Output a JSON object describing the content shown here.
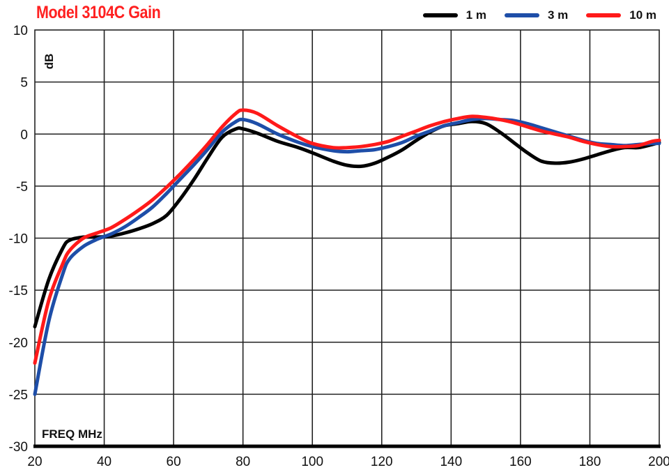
{
  "chart_data": {
    "type": "line",
    "title": "Model 3104C Gain",
    "xlabel": "FREQ  MHz",
    "ylabel": "dB",
    "xlim": [
      20,
      200
    ],
    "ylim": [
      -30,
      10
    ],
    "xticks": [
      20,
      40,
      60,
      80,
      100,
      120,
      140,
      160,
      180,
      200
    ],
    "yticks": [
      10,
      5,
      0,
      -5,
      -10,
      -15,
      -20,
      -25,
      -30
    ],
    "grid": true,
    "legend_position": "top-right",
    "colors": {
      "title": "#ff2020",
      "1 m": "#000000",
      "3 m": "#1e4ea8",
      "10 m": "#ff1a1a"
    },
    "series": [
      {
        "name": "1 m",
        "color": "#000000",
        "x": [
          20,
          24,
          28,
          30,
          34,
          38,
          42,
          46,
          50,
          54,
          58,
          62,
          66,
          70,
          74,
          78,
          80,
          84,
          90,
          96,
          100,
          106,
          110,
          114,
          118,
          122,
          126,
          130,
          134,
          138,
          142,
          146,
          150,
          154,
          158,
          162,
          166,
          170,
          174,
          178,
          182,
          186,
          190,
          194,
          198,
          200
        ],
        "y": [
          -18.5,
          -14,
          -11,
          -10.2,
          -9.9,
          -9.9,
          -9.8,
          -9.5,
          -9.1,
          -8.6,
          -7.8,
          -6.2,
          -4.3,
          -2.2,
          -0.3,
          0.5,
          0.5,
          0.1,
          -0.7,
          -1.3,
          -1.8,
          -2.6,
          -3.0,
          -3.1,
          -2.8,
          -2.2,
          -1.5,
          -0.6,
          0.2,
          0.8,
          1.0,
          1.2,
          1.0,
          0.2,
          -0.8,
          -1.8,
          -2.6,
          -2.8,
          -2.7,
          -2.4,
          -2.0,
          -1.6,
          -1.3,
          -1.3,
          -1.0,
          -0.8
        ]
      },
      {
        "name": "3 m",
        "color": "#1e4ea8",
        "x": [
          20,
          24,
          28,
          30,
          34,
          38,
          42,
          46,
          50,
          54,
          58,
          62,
          66,
          70,
          74,
          78,
          80,
          84,
          90,
          96,
          100,
          106,
          110,
          114,
          118,
          122,
          126,
          130,
          134,
          138,
          142,
          146,
          150,
          154,
          158,
          162,
          166,
          170,
          174,
          178,
          182,
          186,
          190,
          194,
          198,
          200
        ],
        "y": [
          -25,
          -18,
          -13.5,
          -12,
          -10.8,
          -10.1,
          -9.6,
          -8.9,
          -8.0,
          -7.0,
          -5.7,
          -4.3,
          -2.9,
          -1.4,
          0.2,
          1.2,
          1.4,
          1.0,
          0,
          -0.8,
          -1.2,
          -1.6,
          -1.7,
          -1.6,
          -1.5,
          -1.2,
          -0.8,
          -0.2,
          0.3,
          0.8,
          1.1,
          1.4,
          1.5,
          1.4,
          1.3,
          1.0,
          0.6,
          0.2,
          -0.2,
          -0.6,
          -0.9,
          -1.0,
          -1.1,
          -1.0,
          -0.9,
          -0.9
        ]
      },
      {
        "name": "10 m",
        "color": "#ff1a1a",
        "x": [
          20,
          24,
          28,
          30,
          34,
          38,
          42,
          46,
          50,
          54,
          58,
          62,
          66,
          70,
          74,
          78,
          80,
          84,
          90,
          96,
          100,
          106,
          110,
          114,
          118,
          122,
          126,
          130,
          134,
          138,
          142,
          146,
          150,
          154,
          158,
          162,
          166,
          170,
          174,
          178,
          182,
          186,
          190,
          194,
          198,
          200
        ],
        "y": [
          -22,
          -16,
          -12.5,
          -11.2,
          -10,
          -9.5,
          -9.0,
          -8.2,
          -7.3,
          -6.3,
          -5.1,
          -3.8,
          -2.4,
          -0.9,
          0.7,
          2.0,
          2.3,
          2.0,
          0.8,
          -0.3,
          -0.9,
          -1.3,
          -1.3,
          -1.2,
          -1.0,
          -0.7,
          -0.2,
          0.3,
          0.8,
          1.2,
          1.5,
          1.7,
          1.6,
          1.4,
          1.1,
          0.7,
          0.3,
          0,
          -0.3,
          -0.7,
          -1.0,
          -1.2,
          -1.2,
          -1.1,
          -0.7,
          -0.6
        ]
      }
    ]
  }
}
